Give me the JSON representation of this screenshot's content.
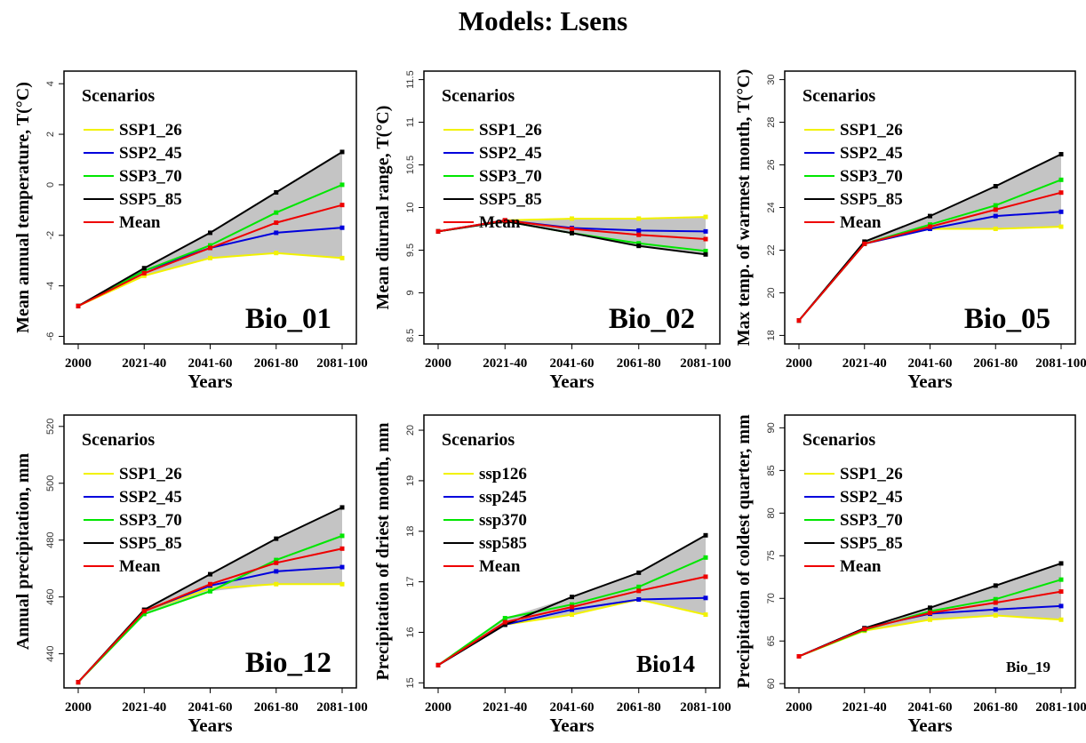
{
  "title": "Models: Lsens",
  "colors": {
    "SSP1_26": "#f2f200",
    "SSP2_45": "#0000dd",
    "SSP3_70": "#00e600",
    "SSP5_85": "#000000",
    "Mean": "#ee0000",
    "band": "#c4c4c4"
  },
  "chart_data": [
    {
      "type": "line",
      "panel_label": "Bio_01",
      "xlabel": "Years",
      "ylabel": "Mean annual temperature, T(°C)",
      "categories": [
        "2000",
        "2021-40",
        "2041-60",
        "2061-80",
        "2081-100"
      ],
      "ylim": [
        -6.3,
        4.5
      ],
      "yticks": [
        -6,
        -4,
        -2,
        0,
        2,
        4
      ],
      "legend_title": "Scenarios",
      "series": [
        {
          "name": "SSP1_26",
          "values": [
            -4.8,
            -3.6,
            -2.9,
            -2.7,
            -2.9
          ]
        },
        {
          "name": "SSP2_45",
          "values": [
            -4.8,
            -3.4,
            -2.5,
            -1.9,
            -1.7
          ]
        },
        {
          "name": "SSP3_70",
          "values": [
            -4.8,
            -3.4,
            -2.4,
            -1.1,
            0.0
          ]
        },
        {
          "name": "SSP5_85",
          "values": [
            -4.8,
            -3.3,
            -1.9,
            -0.3,
            1.3
          ]
        },
        {
          "name": "Mean",
          "values": [
            -4.8,
            -3.5,
            -2.5,
            -1.5,
            -0.8
          ]
        }
      ]
    },
    {
      "type": "line",
      "panel_label": "Bio_02",
      "xlabel": "Years",
      "ylabel": "Mean diurnal range, T(°C)",
      "categories": [
        "2000",
        "2021-40",
        "2041-60",
        "2061-80",
        "2081-100"
      ],
      "ylim": [
        8.4,
        11.6
      ],
      "yticks": [
        8.5,
        9.0,
        9.5,
        10.0,
        10.5,
        11.0,
        11.5
      ],
      "legend_title": "Scenarios",
      "series": [
        {
          "name": "SSP1_26",
          "values": [
            9.72,
            9.85,
            9.87,
            9.87,
            9.89
          ]
        },
        {
          "name": "SSP2_45",
          "values": [
            9.72,
            9.85,
            9.76,
            9.73,
            9.72
          ]
        },
        {
          "name": "SSP3_70",
          "values": [
            9.72,
            9.84,
            9.7,
            9.58,
            9.49
          ]
        },
        {
          "name": "SSP5_85",
          "values": [
            9.72,
            9.84,
            9.7,
            9.55,
            9.45
          ]
        },
        {
          "name": "Mean",
          "values": [
            9.72,
            9.85,
            9.75,
            9.68,
            9.63
          ]
        }
      ]
    },
    {
      "type": "line",
      "panel_label": "Bio_05",
      "xlabel": "Years",
      "ylabel": "Max temp. of warmest month, T(°C)",
      "categories": [
        "2000",
        "2021-40",
        "2041-60",
        "2061-80",
        "2081-100"
      ],
      "ylim": [
        17.6,
        30.4
      ],
      "yticks": [
        18,
        20,
        22,
        24,
        26,
        28,
        30
      ],
      "legend_title": "Scenarios",
      "series": [
        {
          "name": "SSP1_26",
          "values": [
            18.7,
            22.3,
            23.0,
            23.0,
            23.1
          ]
        },
        {
          "name": "SSP2_45",
          "values": [
            18.7,
            22.3,
            23.0,
            23.6,
            23.8
          ]
        },
        {
          "name": "SSP3_70",
          "values": [
            18.7,
            22.3,
            23.2,
            24.1,
            25.3
          ]
        },
        {
          "name": "SSP5_85",
          "values": [
            18.7,
            22.4,
            23.6,
            25.0,
            26.5
          ]
        },
        {
          "name": "Mean",
          "values": [
            18.7,
            22.3,
            23.1,
            23.9,
            24.7
          ]
        }
      ]
    },
    {
      "type": "line",
      "panel_label": "Bio_12",
      "xlabel": "Years",
      "ylabel": "Annual precipitation, mm",
      "categories": [
        "2000",
        "2021-40",
        "2041-60",
        "2061-80",
        "2081-100"
      ],
      "ylim": [
        428,
        524
      ],
      "yticks": [
        440,
        460,
        480,
        500,
        520
      ],
      "legend_title": "Scenarios",
      "series": [
        {
          "name": "SSP1_26",
          "values": [
            430,
            455,
            463,
            464.5,
            464.5
          ]
        },
        {
          "name": "SSP2_45",
          "values": [
            430,
            455,
            464,
            469,
            470.5
          ]
        },
        {
          "name": "SSP3_70",
          "values": [
            430,
            454,
            462,
            473,
            481.5
          ]
        },
        {
          "name": "SSP5_85",
          "values": [
            430,
            455.5,
            468,
            480.5,
            491.5
          ]
        },
        {
          "name": "Mean",
          "values": [
            430,
            455,
            464.5,
            472,
            477
          ]
        }
      ]
    },
    {
      "type": "line",
      "panel_label": "Bio14",
      "xlabel": "Years",
      "ylabel": "Precipitation of driest month, mm",
      "categories": [
        "2000",
        "2021-40",
        "2041-60",
        "2061-80",
        "2081-100"
      ],
      "ylim": [
        14.9,
        20.3
      ],
      "yticks": [
        15,
        16,
        17,
        18,
        19,
        20
      ],
      "legend_title": "Scenarios",
      "series": [
        {
          "name": "ssp126",
          "values": [
            15.35,
            16.15,
            16.35,
            16.65,
            16.35
          ]
        },
        {
          "name": "ssp245",
          "values": [
            15.35,
            16.15,
            16.45,
            16.65,
            16.68
          ]
        },
        {
          "name": "ssp370",
          "values": [
            15.35,
            16.28,
            16.55,
            16.9,
            17.48
          ]
        },
        {
          "name": "ssp585",
          "values": [
            15.35,
            16.15,
            16.7,
            17.18,
            17.92
          ]
        },
        {
          "name": "Mean",
          "values": [
            15.35,
            16.2,
            16.5,
            16.82,
            17.1
          ]
        }
      ]
    },
    {
      "type": "line",
      "panel_label": "Bio_19",
      "xlabel": "Years",
      "ylabel": "Precipitation of coldest quarter, mm",
      "categories": [
        "2000",
        "2021-40",
        "2041-60",
        "2061-80",
        "2081-100"
      ],
      "ylim": [
        59.5,
        91.5
      ],
      "yticks": [
        60,
        65,
        70,
        75,
        80,
        85,
        90
      ],
      "legend_title": "Scenarios",
      "series": [
        {
          "name": "SSP1_26",
          "values": [
            63.2,
            66.2,
            67.5,
            68.0,
            67.5
          ]
        },
        {
          "name": "SSP2_45",
          "values": [
            63.2,
            66.5,
            68.2,
            68.7,
            69.1
          ]
        },
        {
          "name": "SSP3_70",
          "values": [
            63.2,
            66.3,
            68.5,
            69.9,
            72.2
          ]
        },
        {
          "name": "SSP5_85",
          "values": [
            63.2,
            66.5,
            68.9,
            71.5,
            74.1
          ]
        },
        {
          "name": "Mean",
          "values": [
            63.2,
            66.4,
            68.3,
            69.5,
            70.8
          ]
        }
      ]
    }
  ]
}
